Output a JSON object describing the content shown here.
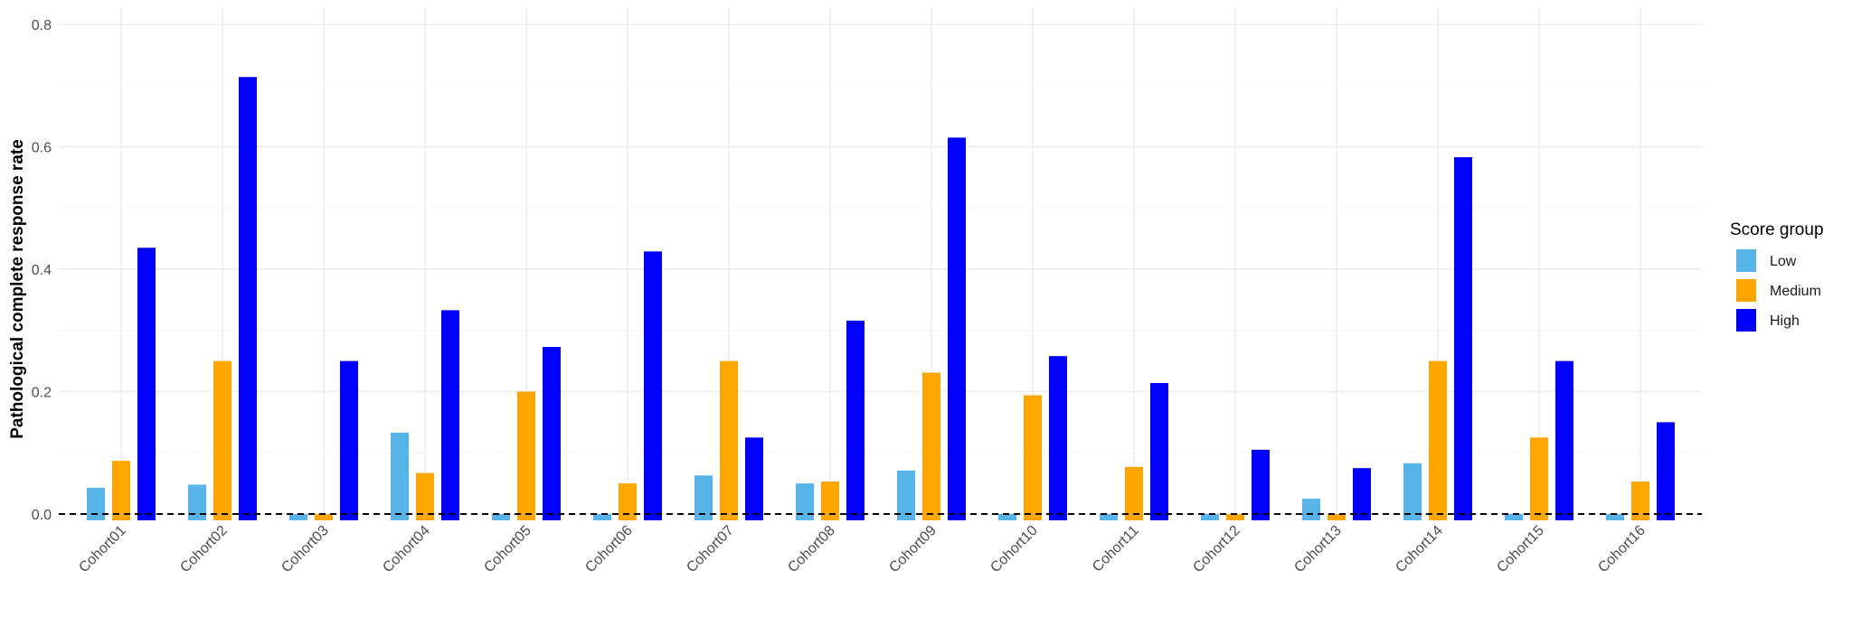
{
  "chart_data": {
    "type": "bar",
    "title": "",
    "xlabel": "",
    "ylabel": "Pathological complete response rate",
    "ylim": [
      0,
      0.8
    ],
    "yticks": [
      0.0,
      0.2,
      0.4,
      0.6,
      0.8
    ],
    "ytick_labels": [
      "0.0",
      "0.2",
      "0.4",
      "0.6",
      "0.8"
    ],
    "grid": true,
    "reference_line": {
      "y": 0,
      "style": "dashed",
      "color": "#000000"
    },
    "legend": {
      "title": "Score group",
      "position": "right"
    },
    "categories": [
      "Cohort01",
      "Cohort02",
      "Cohort03",
      "Cohort04",
      "Cohort05",
      "Cohort06",
      "Cohort07",
      "Cohort08",
      "Cohort09",
      "Cohort10",
      "Cohort11",
      "Cohort12",
      "Cohort13",
      "Cohort14",
      "Cohort15",
      "Cohort16"
    ],
    "series": [
      {
        "name": "Low",
        "color": "#56B4E9",
        "values": [
          0.043,
          0.048,
          0.0,
          0.133,
          0.0,
          0.0,
          0.063,
          0.05,
          0.071,
          0.0,
          0.0,
          0.0,
          0.025,
          0.083,
          0.0,
          0.0
        ]
      },
      {
        "name": "Medium",
        "color": "#FFA500",
        "values": [
          0.087,
          0.25,
          0.0,
          0.067,
          0.2,
          0.05,
          0.25,
          0.053,
          0.231,
          0.194,
          0.077,
          0.0,
          0.0,
          0.25,
          0.125,
          0.053
        ]
      },
      {
        "name": "High",
        "color": "#0000FF",
        "values": [
          0.435,
          0.714,
          0.25,
          0.333,
          0.273,
          0.429,
          0.125,
          0.316,
          0.615,
          0.258,
          0.214,
          0.105,
          0.075,
          0.583,
          0.25,
          0.15
        ]
      }
    ]
  }
}
